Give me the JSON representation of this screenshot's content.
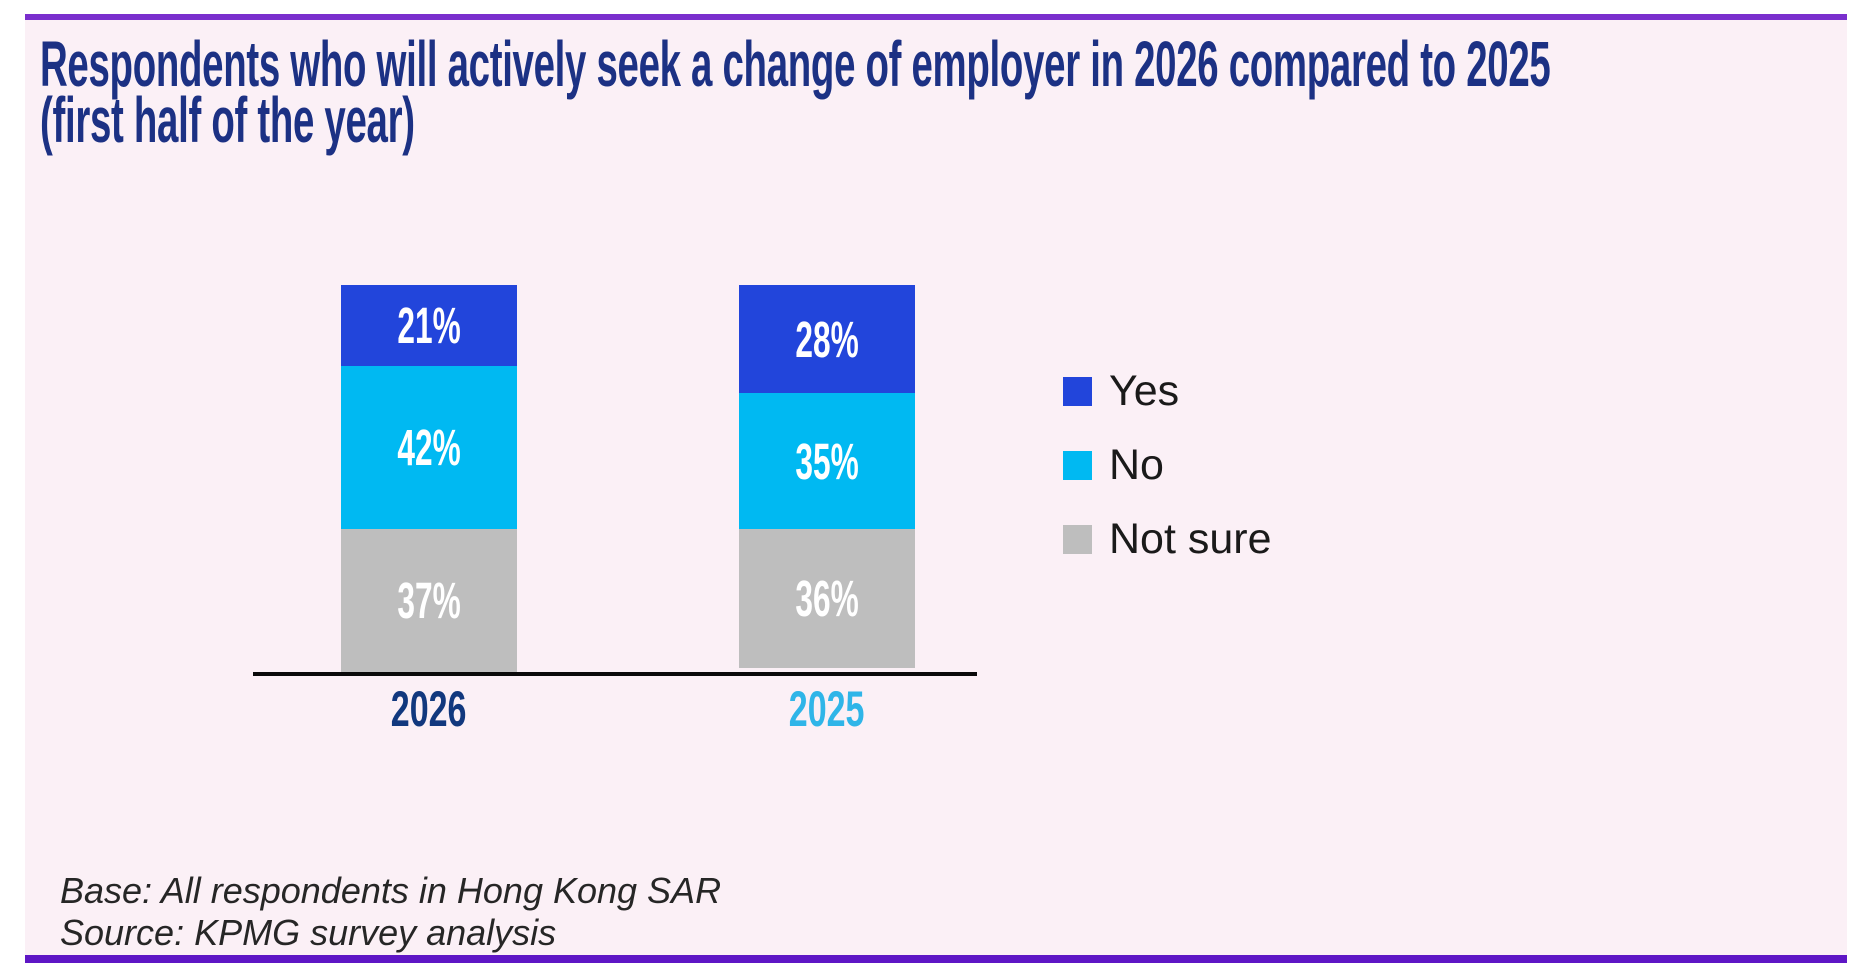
{
  "meta": {
    "page_bg": "#ffffff",
    "card_bg": "#FBF0F6",
    "accent_purple_top": "#7A2FCD",
    "accent_purple_bottom": "#5E16C5",
    "axis_color": "#0a0a0a",
    "title_color": "#1C3184"
  },
  "title": {
    "line1": "Respondents who will actively seek a change of employer in 2026 compared to 2025",
    "line2": "(first half of the year)"
  },
  "chart_data": {
    "type": "bar",
    "stacked": true,
    "orientation": "vertical",
    "unit": "%",
    "categories": [
      "2026",
      "2025"
    ],
    "category_label_colors": [
      "#11387E",
      "#2FB5E8"
    ],
    "series": [
      {
        "name": "Yes",
        "color": "#2245DB",
        "values": [
          21,
          28
        ]
      },
      {
        "name": "No",
        "color": "#00B9F2",
        "values": [
          42,
          35
        ]
      },
      {
        "name": "Not sure",
        "color": "#BEBEBE",
        "values": [
          37,
          36
        ]
      }
    ],
    "value_label_color": "#ffffff",
    "ylim": [
      0,
      100
    ],
    "gridlines": false,
    "y_axis_visible": false,
    "baseline_visible": true,
    "legend_position": "right"
  },
  "legend": {
    "text_color": "#1A1A1A",
    "items": [
      {
        "label": "Yes",
        "color": "#2245DB"
      },
      {
        "label": "No",
        "color": "#00B9F2"
      },
      {
        "label": "Not sure",
        "color": "#BEBEBE"
      }
    ]
  },
  "footer": {
    "line1": "Base: All respondents in Hong Kong SAR",
    "line2": "Source: KPMG survey analysis"
  }
}
